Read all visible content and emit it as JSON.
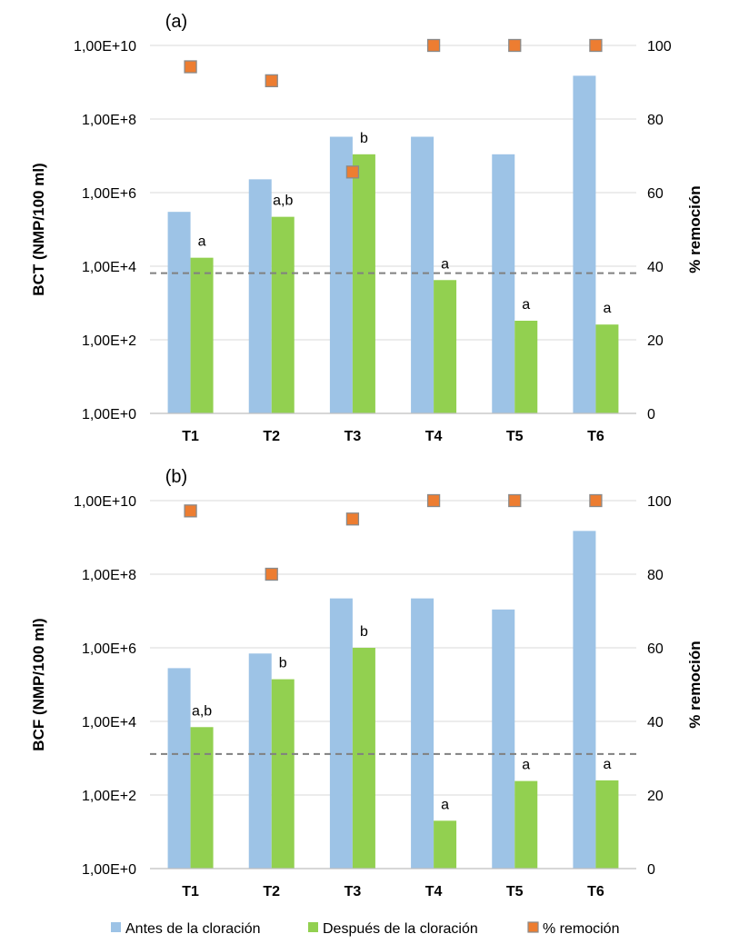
{
  "chart_data": [
    {
      "type": "bar",
      "panel_label": "(a)",
      "ylabel": "BCT (NMP/100 ml)",
      "y2label": "% remoción",
      "y_scale": "log",
      "ylim": [
        1,
        10000000000
      ],
      "y_ticks": [
        "1,00E+0",
        "1,00E+2",
        "1,00E+4",
        "1,00E+6",
        "1,00E+8",
        "1,00E+10"
      ],
      "y2lim": [
        0,
        100
      ],
      "y2_ticks": [
        "0",
        "20",
        "40",
        "60",
        "80",
        "100"
      ],
      "categories": [
        "T1",
        "T2",
        "T3",
        "T4",
        "T5",
        "T6"
      ],
      "series": [
        {
          "name": "Antes de la cloración",
          "type": "bar",
          "color": "#9dc3e6",
          "values": [
            300000,
            2300000,
            33000000,
            33000000,
            11000000,
            1500000000
          ]
        },
        {
          "name": "Después de la cloración",
          "type": "bar",
          "color": "#92d050",
          "values": [
            17000,
            220000,
            11000000,
            4200,
            330,
            260
          ]
        },
        {
          "name": "% remoción",
          "type": "scatter",
          "axis": "secondary",
          "color": "#ed7d31",
          "values": [
            94.2,
            90.4,
            65.6,
            100,
            100,
            100
          ]
        }
      ],
      "data_labels": [
        "a",
        "a,b",
        "b",
        "a",
        "a",
        "a"
      ],
      "reference_line": {
        "value": 6500,
        "style": "dashed",
        "color": "#808080"
      },
      "grid": true
    },
    {
      "type": "bar",
      "panel_label": "(b)",
      "ylabel": "BCF (NMP/100 ml)",
      "y2label": "% remoción",
      "y_scale": "log",
      "ylim": [
        1,
        10000000000
      ],
      "y_ticks": [
        "1,00E+0",
        "1,00E+2",
        "1,00E+4",
        "1,00E+6",
        "1,00E+8",
        "1,00E+10"
      ],
      "y2lim": [
        0,
        100
      ],
      "y2_ticks": [
        "0",
        "20",
        "40",
        "60",
        "80",
        "100"
      ],
      "categories": [
        "T1",
        "T2",
        "T3",
        "T4",
        "T5",
        "T6"
      ],
      "series": [
        {
          "name": "Antes de la cloración",
          "type": "bar",
          "color": "#9dc3e6",
          "values": [
            280000,
            700000,
            22000000,
            22000000,
            11000000,
            1500000000
          ]
        },
        {
          "name": "Después de la cloración",
          "type": "bar",
          "color": "#92d050",
          "values": [
            7000,
            140000,
            1000000,
            20,
            240,
            250
          ]
        },
        {
          "name": "% remoción",
          "type": "scatter",
          "axis": "secondary",
          "color": "#ed7d31",
          "values": [
            97.2,
            80,
            95,
            100,
            100,
            100
          ]
        }
      ],
      "data_labels": [
        "a,b",
        "b",
        "b",
        "a",
        "a",
        "a"
      ],
      "reference_line": {
        "value": 1300,
        "style": "dashed",
        "color": "#808080"
      },
      "grid": true
    }
  ],
  "legend": {
    "placement": "bottom",
    "items": [
      {
        "label": "Antes de la cloración",
        "color": "#9dc3e6",
        "marker": "square"
      },
      {
        "label": "Después de la cloración",
        "color": "#92d050",
        "marker": "square"
      },
      {
        "label": "% remoción",
        "color": "#ed7d31",
        "marker": "square"
      }
    ]
  }
}
